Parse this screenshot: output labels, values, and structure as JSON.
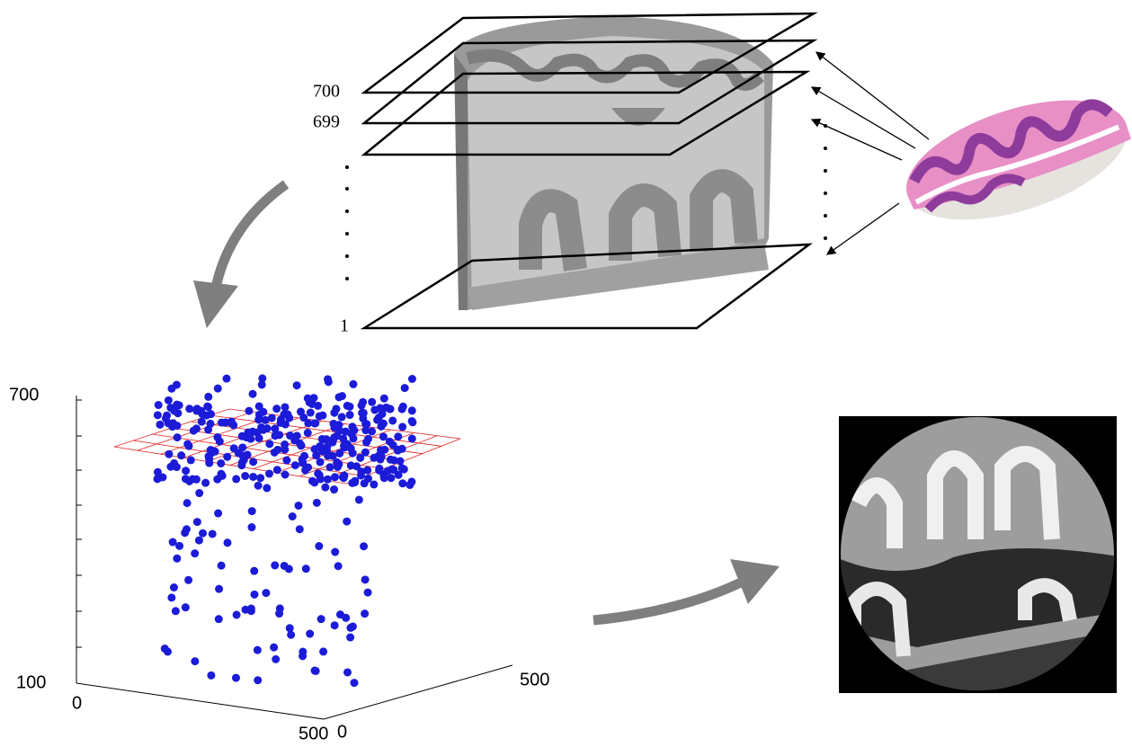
{
  "slice_labels": [
    "700",
    "699",
    "1"
  ],
  "scatter_axes": {
    "z_top": "700",
    "z_bottom": "100",
    "x_start": "0",
    "x_end": "500",
    "y_start": "0",
    "y_end": "500"
  }
}
